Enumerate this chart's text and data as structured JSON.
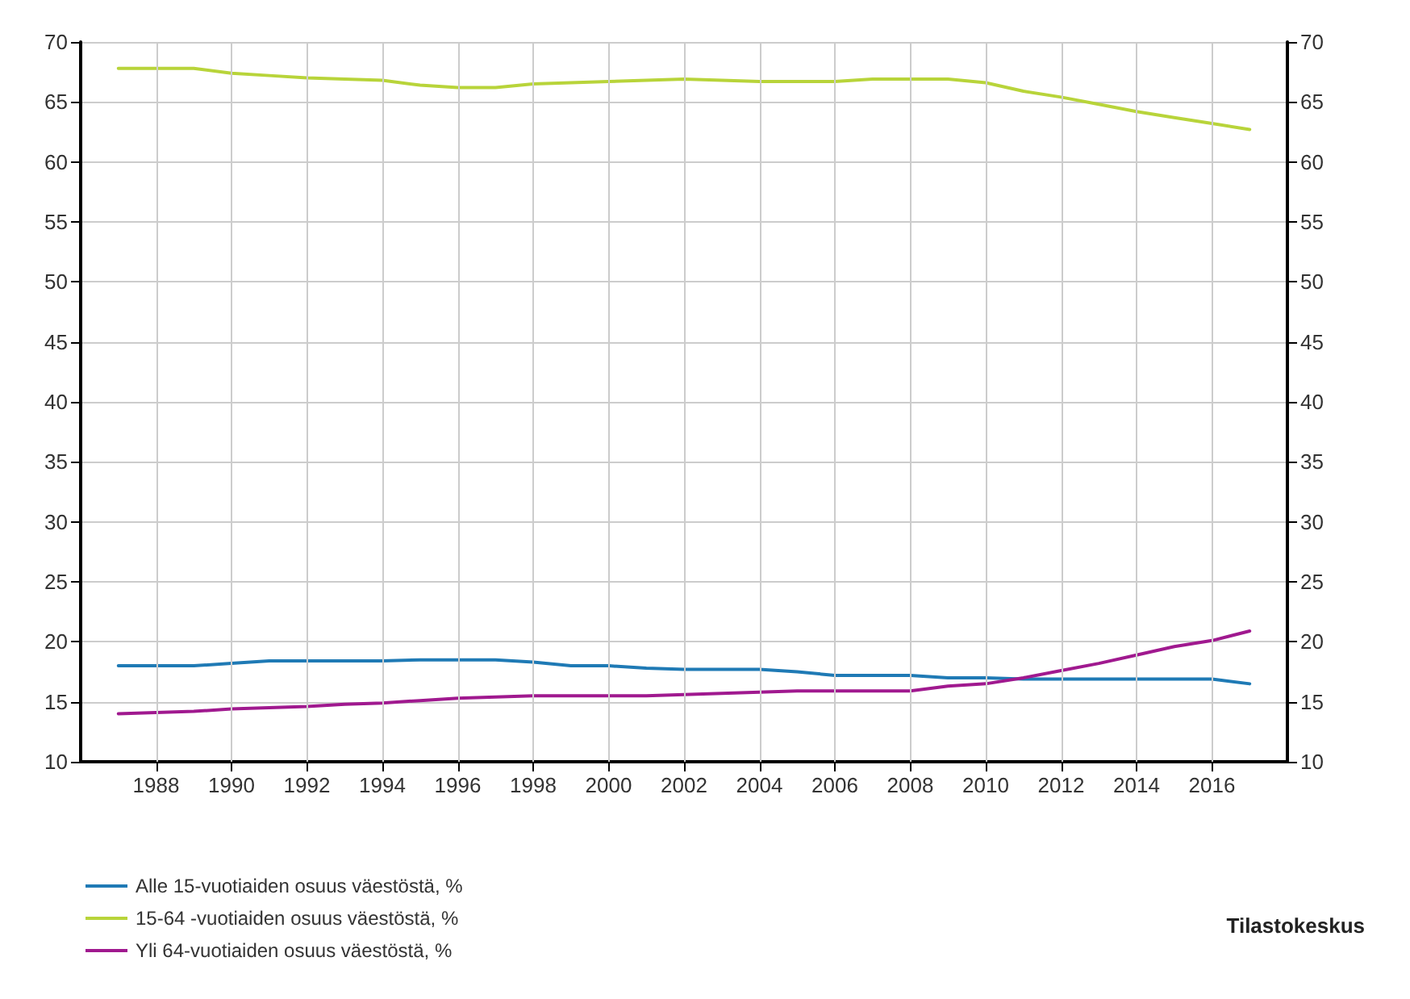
{
  "chart_data": {
    "type": "line",
    "x": [
      1987,
      1988,
      1989,
      1990,
      1991,
      1992,
      1993,
      1994,
      1995,
      1996,
      1997,
      1998,
      1999,
      2000,
      2001,
      2002,
      2003,
      2004,
      2005,
      2006,
      2007,
      2008,
      2009,
      2010,
      2011,
      2012,
      2013,
      2014,
      2015,
      2016,
      2017
    ],
    "series": [
      {
        "name": "Alle 15-vuotiaiden osuus väestöstä, %",
        "color": "#1f7ab5",
        "values": [
          18.0,
          18.0,
          18.0,
          18.2,
          18.4,
          18.4,
          18.4,
          18.4,
          18.5,
          18.5,
          18.5,
          18.3,
          18.0,
          18.0,
          17.8,
          17.7,
          17.7,
          17.7,
          17.5,
          17.2,
          17.2,
          17.2,
          17.0,
          17.0,
          16.9,
          16.9,
          16.9,
          16.9,
          16.9,
          16.9,
          16.5
        ]
      },
      {
        "name": "15-64 -vuotiaiden osuus väestöstä, %",
        "color": "#b8d43a",
        "values": [
          67.8,
          67.8,
          67.8,
          67.4,
          67.2,
          67.0,
          66.9,
          66.8,
          66.4,
          66.2,
          66.2,
          66.5,
          66.6,
          66.7,
          66.8,
          66.9,
          66.8,
          66.7,
          66.7,
          66.7,
          66.9,
          66.9,
          66.9,
          66.6,
          65.9,
          65.4,
          64.8,
          64.2,
          63.7,
          63.2,
          62.7
        ]
      },
      {
        "name": "Yli 64-vuotiaiden osuus väestöstä, %",
        "color": "#a0198f",
        "values": [
          14.0,
          14.1,
          14.2,
          14.4,
          14.5,
          14.6,
          14.8,
          14.9,
          15.1,
          15.3,
          15.4,
          15.5,
          15.5,
          15.5,
          15.5,
          15.6,
          15.7,
          15.8,
          15.9,
          15.9,
          15.9,
          15.9,
          16.3,
          16.5,
          17.0,
          17.6,
          18.2,
          18.9,
          19.6,
          20.1,
          20.9
        ]
      }
    ],
    "xlim": [
      1986,
      2018
    ],
    "xticks": [
      1988,
      1990,
      1992,
      1994,
      1996,
      1998,
      2000,
      2002,
      2004,
      2006,
      2008,
      2010,
      2012,
      2014,
      2016
    ],
    "ylim": [
      10,
      70
    ],
    "yticks": [
      10,
      15,
      20,
      25,
      30,
      35,
      40,
      45,
      50,
      55,
      60,
      65,
      70
    ],
    "y2lim": [
      10,
      70
    ],
    "y2ticks": [
      10,
      15,
      20,
      25,
      30,
      35,
      40,
      45,
      50,
      55,
      60,
      65,
      70
    ],
    "grid": true,
    "legend": "bottom left",
    "marker": "none",
    "line_style": "solid",
    "annotations": [
      "Tilastokeskus"
    ]
  }
}
